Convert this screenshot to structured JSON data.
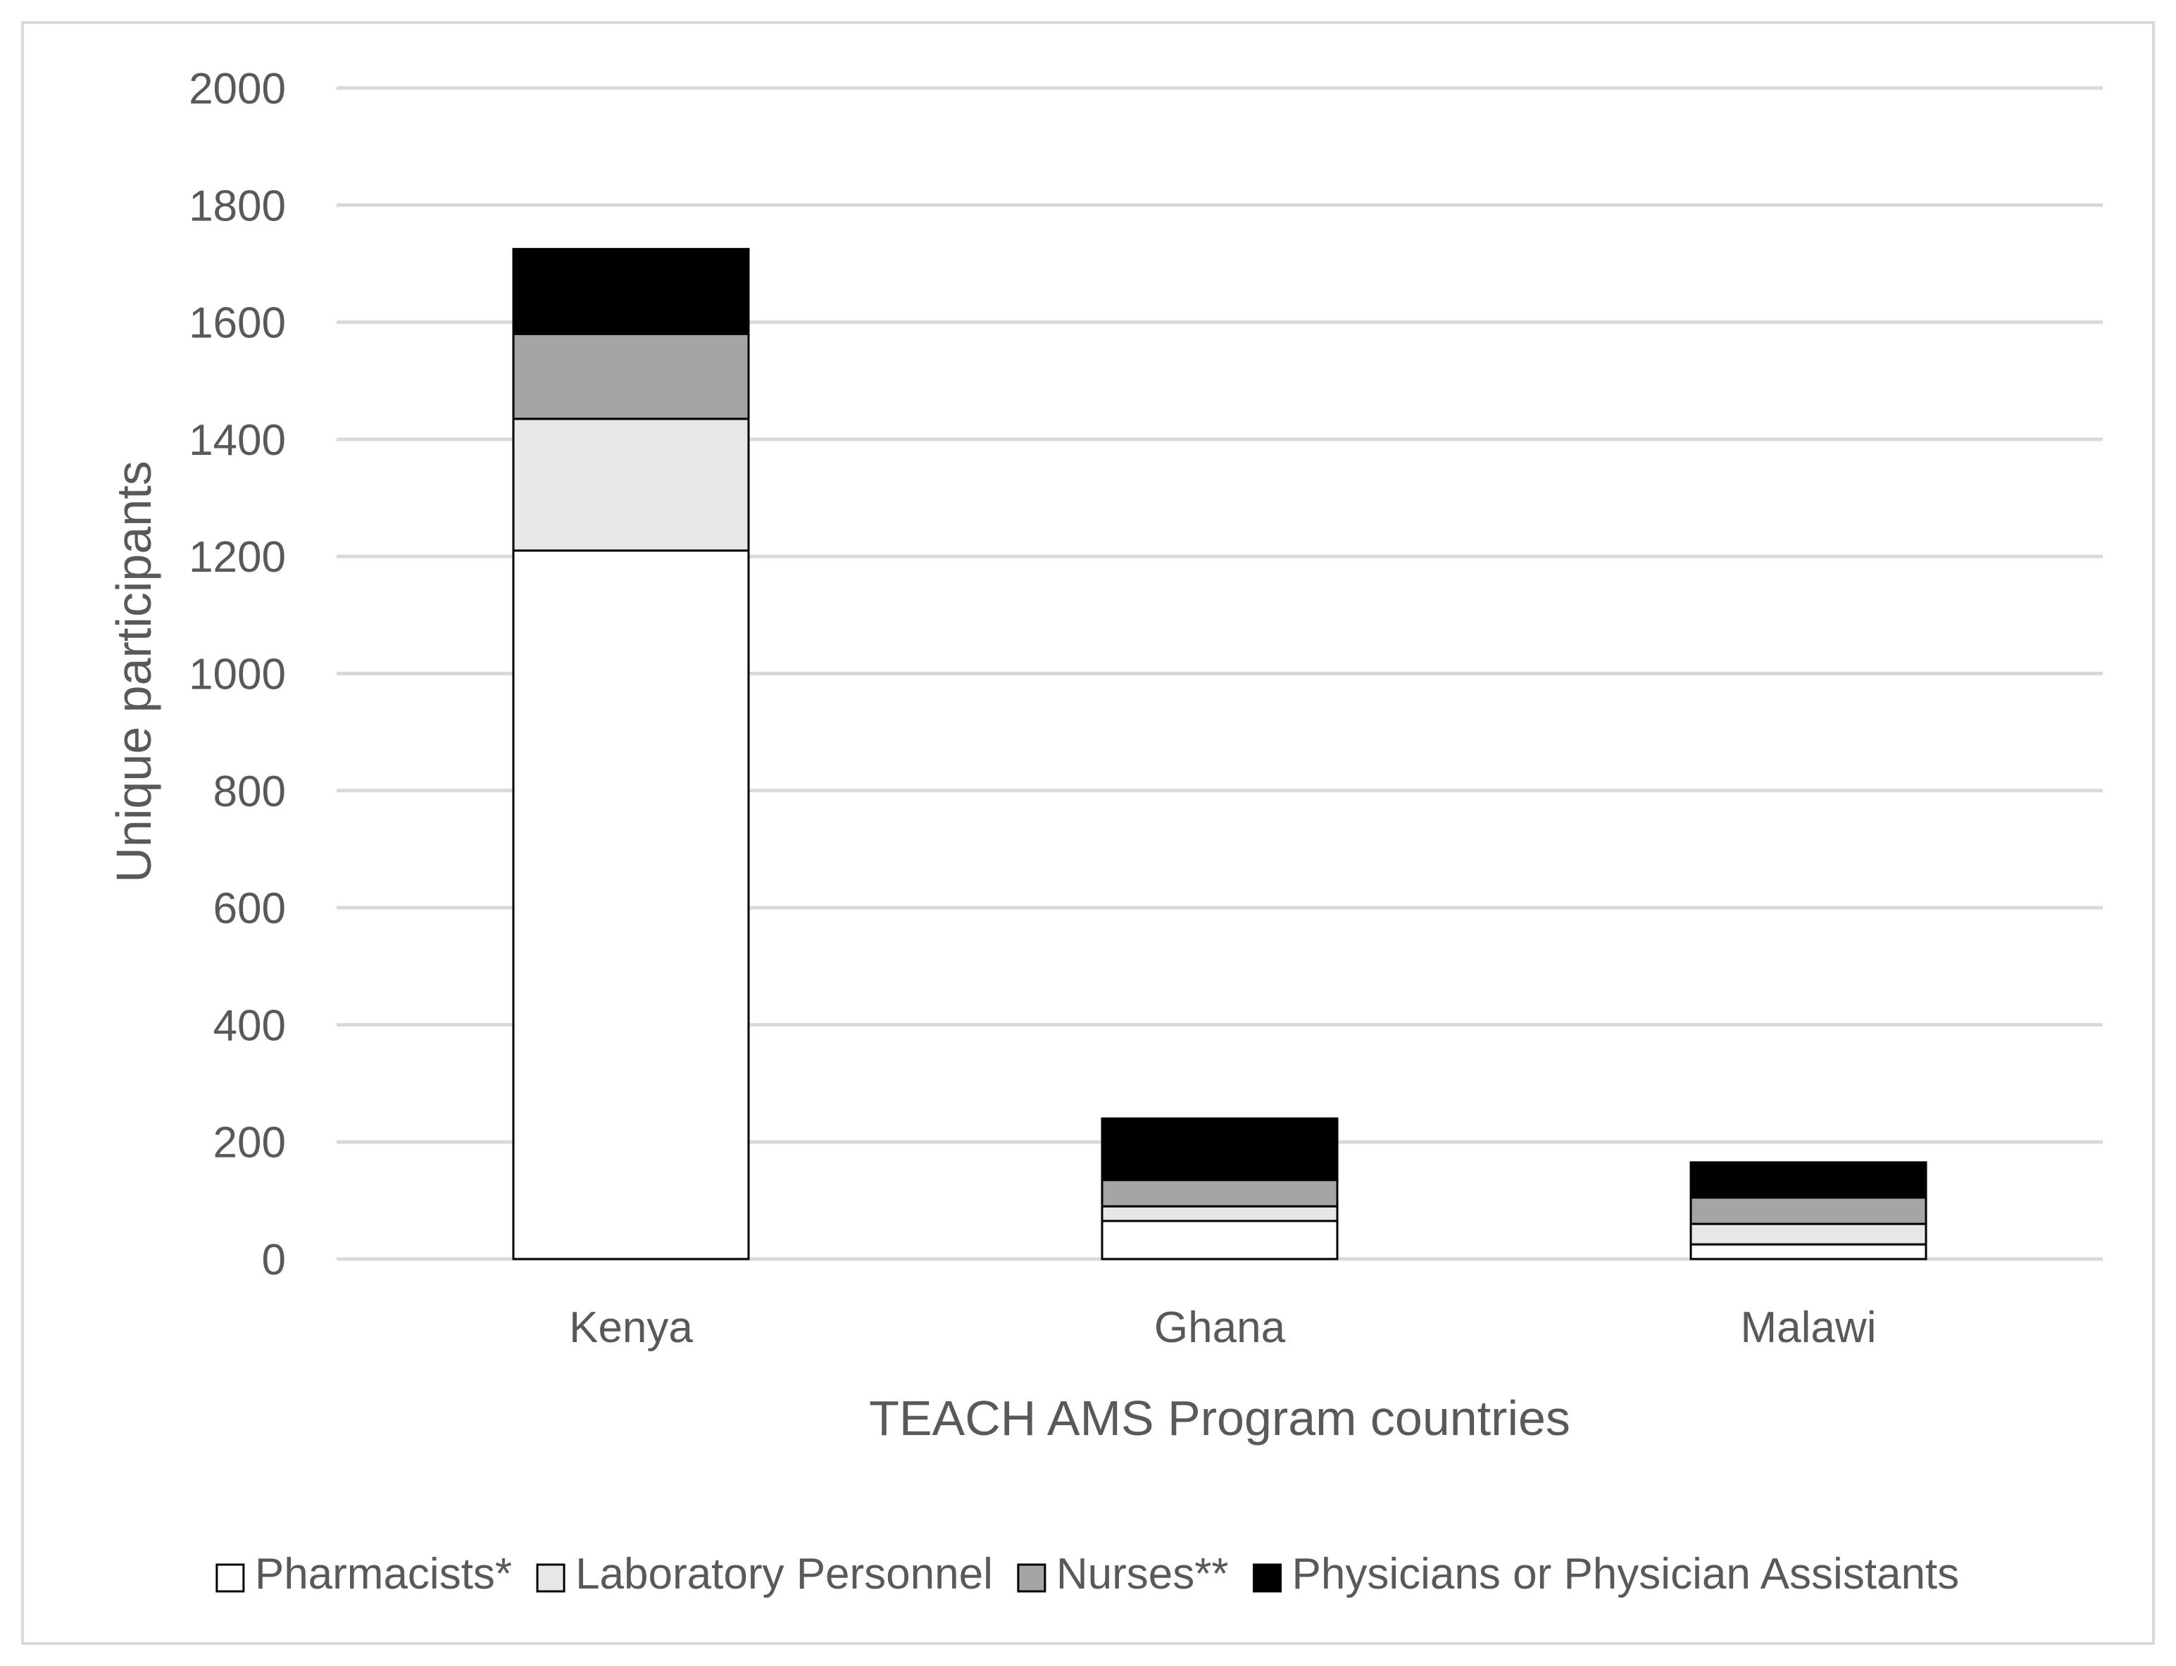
{
  "chart_data": {
    "type": "bar",
    "stacked": true,
    "categories": [
      "Kenya",
      "Ghana",
      "Malawi"
    ],
    "series": [
      {
        "name": "Pharmacists*",
        "color": "#ffffff",
        "values": [
          1210,
          65,
          25
        ]
      },
      {
        "name": "Laboratory Personnel",
        "color": "#e7e7e7",
        "values": [
          225,
          25,
          35
        ]
      },
      {
        "name": "Nurses**",
        "color": "#a5a5a5",
        "values": [
          145,
          45,
          45
        ]
      },
      {
        "name": "Physicians or Physician Assistants",
        "color": "#000000",
        "values": [
          145,
          105,
          60
        ]
      }
    ],
    "xlabel": "TEACH AMS Program countries",
    "ylabel": "Unique participants",
    "ylim": [
      0,
      2000
    ],
    "yticks": [
      0,
      200,
      400,
      600,
      800,
      1000,
      1200,
      1400,
      1600,
      1800,
      2000
    ],
    "grid": true,
    "legend_position": "bottom",
    "colors": {
      "gridline": "#d9d9d9",
      "text": "#595959",
      "bar_border": "#000000"
    }
  }
}
